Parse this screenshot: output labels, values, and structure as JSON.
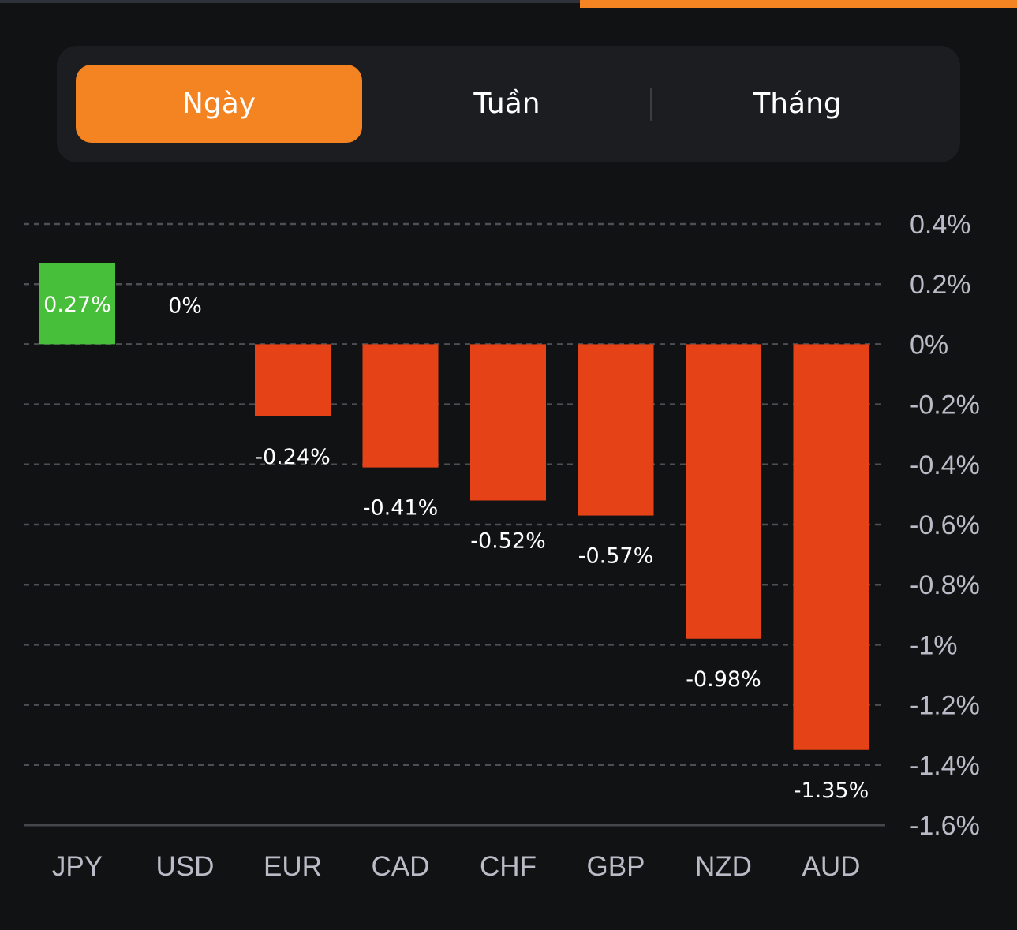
{
  "top_bar": {
    "progress_color": "#f48421"
  },
  "segmented_control": {
    "options": [
      {
        "label": "Ngày",
        "active": true
      },
      {
        "label": "Tuần",
        "active": false
      },
      {
        "label": "Tháng",
        "active": false
      }
    ],
    "active_color": "#f48421"
  },
  "chart_data": {
    "type": "bar",
    "title": "",
    "xlabel": "",
    "ylabel": "",
    "categories": [
      "JPY",
      "USD",
      "EUR",
      "CAD",
      "CHF",
      "GBP",
      "NZD",
      "AUD"
    ],
    "values": [
      0.27,
      0,
      -0.24,
      -0.41,
      -0.52,
      -0.57,
      -0.98,
      -1.35
    ],
    "value_labels": [
      "0.27%",
      "0%",
      "-0.24%",
      "-0.41%",
      "-0.52%",
      "-0.57%",
      "-0.98%",
      "-1.35%"
    ],
    "unit": "%",
    "ylim": [
      -1.6,
      0.4
    ],
    "yticks": [
      0.4,
      0.2,
      0,
      -0.2,
      -0.4,
      -0.6,
      -0.8,
      -1,
      -1.2,
      -1.4,
      -1.6
    ],
    "ytick_labels": [
      "0.4%",
      "0.2%",
      "0%",
      "-0.2%",
      "-0.4%",
      "-0.6%",
      "-0.8%",
      "-1%",
      "-1.2%",
      "-1.4%",
      "-1.6%"
    ],
    "y_axis_position": "right",
    "grid": true,
    "legend": "none",
    "colors": {
      "positive": "#48bf3a",
      "negative": "#e54218"
    }
  }
}
